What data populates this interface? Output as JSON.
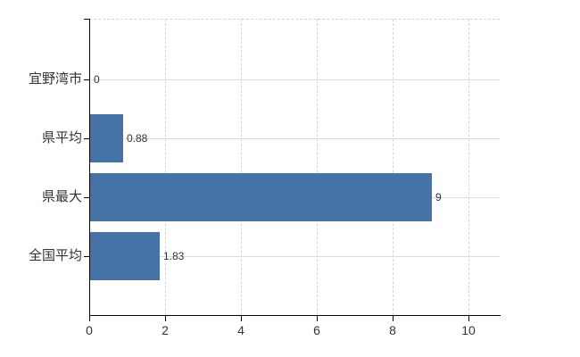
{
  "chart_data": {
    "type": "bar",
    "orientation": "horizontal",
    "title": "",
    "xlabel": "",
    "ylabel": "",
    "categories": [
      "宜野湾市",
      "県平均",
      "県最大",
      "全国平均"
    ],
    "values": [
      0,
      0.88,
      9,
      1.83
    ],
    "value_labels": [
      "0",
      "0.88",
      "9",
      "1.83"
    ],
    "xticks": [
      "0",
      "2",
      "4",
      "6",
      "8",
      "10"
    ],
    "xtick_values": [
      0,
      2,
      4,
      6,
      8,
      10
    ],
    "xlim": [
      0,
      10.8
    ],
    "grid": "horizontal lines at category centers, dashed vertical lines at ticks, dashed top border",
    "legend": false,
    "colors": {
      "bar": "#4572a7",
      "grid": "#dadeda",
      "grid_dashed": "#d5d5d5",
      "axis": "#000000",
      "text": "#333333"
    }
  }
}
